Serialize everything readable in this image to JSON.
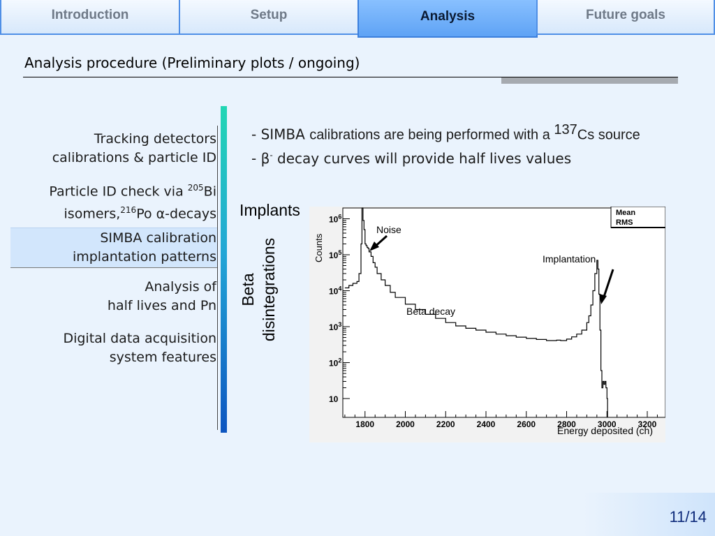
{
  "tabs": [
    {
      "label": "Introduction",
      "active": false
    },
    {
      "label": "Setup",
      "active": false
    },
    {
      "label": "Analysis",
      "active": true
    },
    {
      "label": "Future goals",
      "active": false
    }
  ],
  "slide": {
    "title": "Analysis procedure (Preliminary plots / ongoing)",
    "page": "11/14"
  },
  "nav": {
    "items": [
      {
        "line1": "Tracking detectors",
        "line2": "calibrations & particle ID"
      },
      {
        "line1_pre": "Particle ID check via ",
        "line1_sup": "205",
        "line1_post": "Bi",
        "line2_pre": "isomers,",
        "line2_sup": "216",
        "line2_post": "Po α-decays"
      },
      {
        "line1": "SIMBA calibration",
        "line2": "implantation patterns",
        "highlighted": true
      },
      {
        "line1": "Analysis of",
        "line2": "half lives and Pn"
      },
      {
        "line1": "Digital data acquisition",
        "line2": "system features"
      }
    ]
  },
  "bullets": {
    "b1_dash": "- ",
    "b1_a": "SIMBA ",
    "b1_b": "calibrations are being performed with a ",
    "b1_sup": "137",
    "b1_c": "Cs source",
    "b2_a": "- β",
    "b2_sup": "-",
    "b2_b": " decay curves will provide half lives values"
  },
  "labels": {
    "implants": "Implants",
    "beta_1": "Beta",
    "beta_2": "disintegrations"
  },
  "chart_data": {
    "type": "line",
    "xlabel": "Energy deposited (ch)",
    "ylabel": "Counts",
    "yscale": "log",
    "xlim": [
      1690,
      3290
    ],
    "ylim": [
      3,
      2000000
    ],
    "x_ticks": [
      1800,
      2000,
      2200,
      2400,
      2600,
      2800,
      3000,
      3200
    ],
    "y_ticks": [
      {
        "value": 10,
        "base": "10",
        "exp": ""
      },
      {
        "value": 100,
        "base": "10",
        "exp": "2"
      },
      {
        "value": 1000,
        "base": "10",
        "exp": "3"
      },
      {
        "value": 10000,
        "base": "10",
        "exp": "4"
      },
      {
        "value": 100000,
        "base": "10",
        "exp": "5"
      },
      {
        "value": 1000000,
        "base": "10",
        "exp": "6"
      }
    ],
    "stats_box": [
      "Mean",
      "RMS"
    ],
    "annotations": [
      {
        "text": "Noise"
      },
      {
        "text": "Beta decay"
      },
      {
        "text": "Implantation"
      }
    ],
    "series": [
      {
        "x": [
          1700,
          1720,
          1740,
          1760,
          1770,
          1780,
          1785,
          1790,
          1795,
          1800,
          1805,
          1810,
          1815,
          1820,
          1830,
          1840,
          1850,
          1860,
          1880,
          1900,
          1925,
          1950,
          2000,
          2050,
          2100,
          2150,
          2200,
          2250,
          2300,
          2350,
          2400,
          2450,
          2500,
          2550,
          2600,
          2650,
          2700,
          2750,
          2770,
          2800,
          2825,
          2850,
          2875,
          2900,
          2910,
          2920,
          2930,
          2940,
          2950,
          2955,
          2960,
          2965,
          2970,
          2975,
          2980,
          2985,
          2990,
          2995,
          3000,
          3003
        ],
        "y": [
          12000,
          14000,
          16000,
          18000,
          30000,
          200000,
          2000000,
          900000,
          500000,
          200000,
          180000,
          160000,
          150000,
          120000,
          90000,
          60000,
          45000,
          30000,
          20000,
          14000,
          9000,
          6500,
          4200,
          3000,
          2200,
          1700,
          1300,
          1050,
          900,
          800,
          700,
          620,
          560,
          510,
          470,
          440,
          410,
          420,
          410,
          450,
          520,
          620,
          800,
          1300,
          2000,
          4000,
          10000,
          30000,
          70000,
          40000,
          8000,
          800,
          60,
          20,
          30,
          25,
          30,
          20,
          10,
          1
        ]
      }
    ]
  }
}
